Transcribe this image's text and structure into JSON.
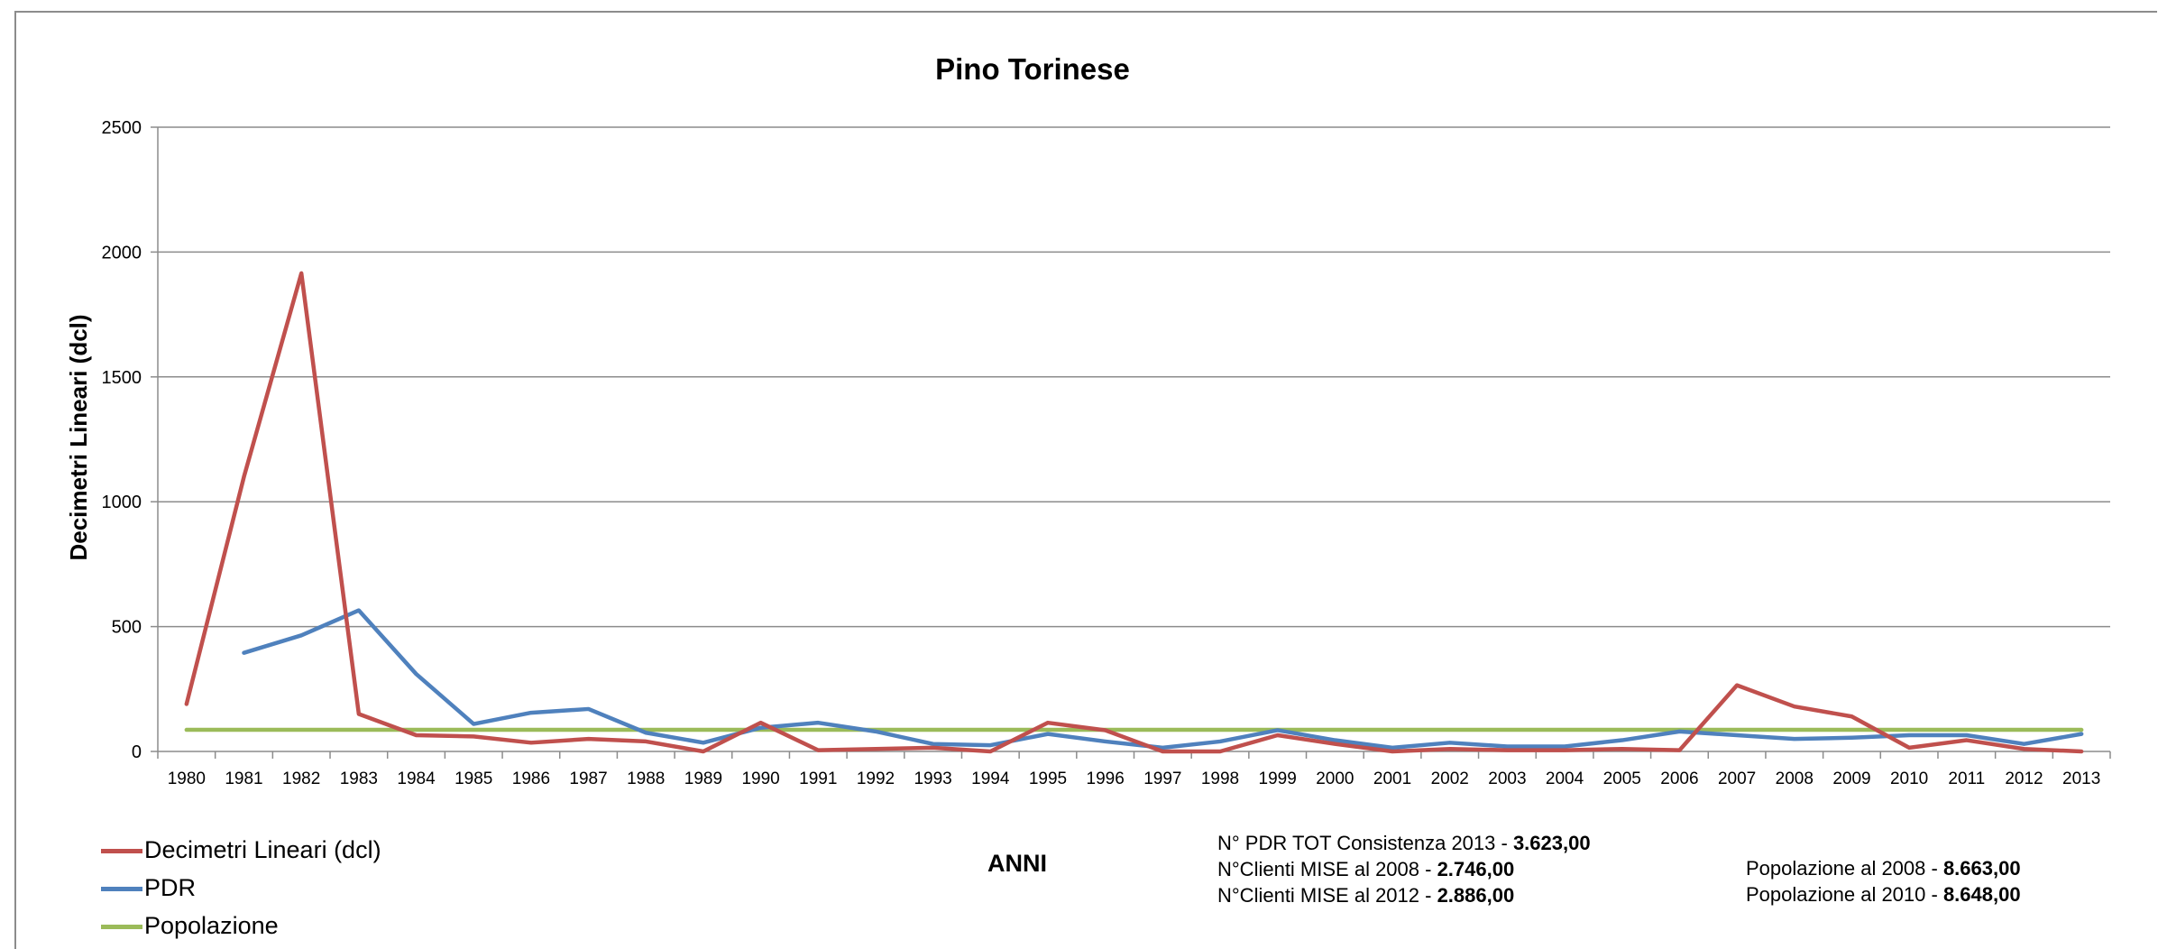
{
  "chart_data": {
    "type": "line",
    "title": "Pino Torinese",
    "xlabel": "ANNI",
    "ylabel": "Decimetri Lineari (dcl)",
    "ylim": [
      0,
      2500
    ],
    "yticks": [
      0,
      500,
      1000,
      1500,
      2000,
      2500
    ],
    "grid": true,
    "legend_position": "bottom-left",
    "categories": [
      "1980",
      "1981",
      "1982",
      "1983",
      "1984",
      "1985",
      "1986",
      "1987",
      "1988",
      "1989",
      "1990",
      "1991",
      "1992",
      "1993",
      "1994",
      "1995",
      "1996",
      "1997",
      "1998",
      "1999",
      "2000",
      "2001",
      "2002",
      "2003",
      "2004",
      "2005",
      "2006",
      "2007",
      "2008",
      "2009",
      "2010",
      "2011",
      "2012",
      "2013"
    ],
    "series": [
      {
        "name": "Decimetri Lineari (dcl)",
        "color": "#c0504d",
        "values": [
          190,
          1100,
          1915,
          150,
          65,
          60,
          35,
          50,
          40,
          0,
          115,
          5,
          10,
          15,
          0,
          115,
          85,
          0,
          0,
          65,
          30,
          0,
          10,
          5,
          5,
          10,
          5,
          265,
          180,
          140,
          15,
          45,
          10,
          0
        ]
      },
      {
        "name": "PDR",
        "color": "#4f81bd",
        "values": [
          null,
          395,
          465,
          565,
          310,
          110,
          155,
          170,
          75,
          35,
          95,
          115,
          80,
          30,
          25,
          70,
          40,
          15,
          40,
          85,
          45,
          15,
          35,
          20,
          20,
          45,
          80,
          65,
          50,
          55,
          65,
          65,
          30,
          70
        ]
      },
      {
        "name": "Popolazione",
        "color": "#9bbb59",
        "values": [
          86.48,
          86.48,
          86.48,
          86.48,
          86.48,
          86.48,
          86.48,
          86.48,
          86.48,
          86.48,
          86.48,
          86.48,
          86.48,
          86.48,
          86.48,
          86.48,
          86.48,
          86.48,
          86.48,
          86.48,
          86.48,
          86.48,
          86.48,
          86.48,
          86.48,
          86.48,
          86.48,
          86.48,
          86.48,
          86.48,
          86.48,
          86.48,
          86.48,
          86.48
        ]
      }
    ]
  },
  "info": {
    "pdr_label": "N° PDR TOT Consistenza 2013 - ",
    "pdr_value": "3.623,00",
    "mise2008_label": "N°Clienti MISE al 2008 - ",
    "mise2008_value": "2.746,00",
    "mise2012_label": "N°Clienti MISE al 2012 - ",
    "mise2012_value": "2.886,00",
    "pop2008_label": "Popolazione al 2008 - ",
    "pop2008_value": "8.663,00",
    "pop2010_label": "Popolazione al 2010 - ",
    "pop2010_value": "8.648,00"
  }
}
